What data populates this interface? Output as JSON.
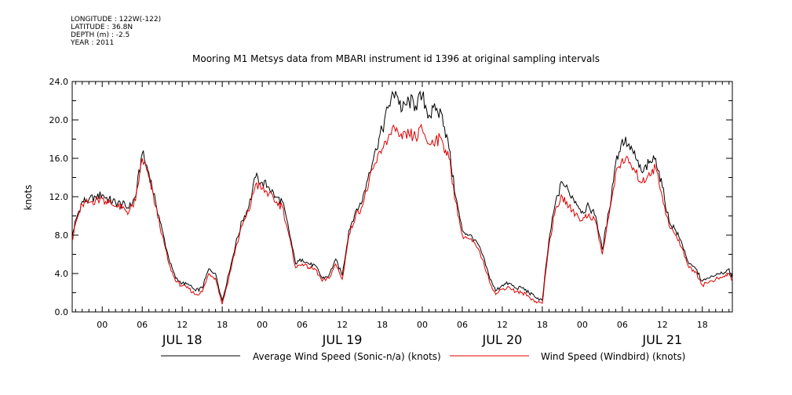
{
  "header": {
    "meta_lines": [
      "LONGITUDE : 122W(-122)",
      "LATITUDE : 36.8N",
      "DEPTH (m) : -2.5",
      "YEAR : 2011"
    ],
    "title": "Mooring M1 Metsys data from MBARI instrument id 1396 at original sampling intervals"
  },
  "chart_data": {
    "type": "line",
    "title": "Mooring M1 Metsys data from MBARI instrument id 1396 at original sampling intervals",
    "xlabel": "",
    "ylabel": "knots",
    "ylim": [
      0,
      24
    ],
    "xlim_hours": [
      -4.5,
      94.5
    ],
    "y_ticks": [
      "0.0",
      "4.0",
      "8.0",
      "12.0",
      "16.0",
      "20.0",
      "24.0"
    ],
    "x_hour_ticks": [
      {
        "h": 0,
        "label": "00"
      },
      {
        "h": 6,
        "label": "06"
      },
      {
        "h": 12,
        "label": "12"
      },
      {
        "h": 18,
        "label": "18"
      },
      {
        "h": 24,
        "label": "00"
      },
      {
        "h": 30,
        "label": "06"
      },
      {
        "h": 36,
        "label": "12"
      },
      {
        "h": 42,
        "label": "18"
      },
      {
        "h": 48,
        "label": "00"
      },
      {
        "h": 54,
        "label": "06"
      },
      {
        "h": 60,
        "label": "12"
      },
      {
        "h": 66,
        "label": "18"
      },
      {
        "h": 72,
        "label": "00"
      },
      {
        "h": 78,
        "label": "06"
      },
      {
        "h": 84,
        "label": "12"
      },
      {
        "h": 90,
        "label": "18"
      }
    ],
    "x_day_labels": [
      {
        "h": 12,
        "label": "JUL 18"
      },
      {
        "h": 36,
        "label": "JUL 19"
      },
      {
        "h": 60,
        "label": "JUL 20"
      },
      {
        "h": 84,
        "label": "JUL 21"
      }
    ],
    "legend_position": "bottom",
    "grid": false,
    "series": [
      {
        "name": "Average Wind Speed (Sonic-n/a) (knots)",
        "color": "#000000",
        "x": [
          -4.5,
          -4,
          -3,
          -2,
          -1,
          0,
          1,
          2,
          3,
          4,
          5,
          6,
          7,
          8,
          9,
          10,
          11,
          12,
          13,
          14,
          15,
          16,
          17,
          18,
          19,
          20,
          21,
          22,
          23,
          24,
          25,
          26,
          27,
          28,
          29,
          30,
          31,
          32,
          33,
          34,
          35,
          36,
          37,
          38,
          39,
          40,
          41,
          42,
          43,
          44,
          45,
          46,
          47,
          48,
          49,
          50,
          51,
          52,
          53,
          54,
          55,
          56,
          57,
          58,
          59,
          60,
          61,
          62,
          63,
          64,
          65,
          66,
          67,
          68,
          69,
          70,
          71,
          72,
          73,
          74,
          75,
          76,
          77,
          78,
          79,
          80,
          81,
          82,
          83,
          84,
          85,
          86,
          87,
          88,
          89,
          90,
          91,
          92,
          93,
          94,
          94.5
        ],
        "y": [
          7.8,
          9.5,
          11.5,
          11.7,
          12.0,
          12.2,
          11.7,
          11.4,
          11.2,
          10.8,
          12.0,
          16.5,
          14.5,
          11.5,
          8.5,
          5.5,
          3.5,
          3.0,
          2.8,
          2.2,
          2.5,
          4.5,
          4.0,
          1.2,
          4.0,
          7.0,
          9.5,
          11.0,
          14.0,
          13.5,
          13.0,
          12.0,
          11.5,
          8.5,
          5.0,
          5.5,
          5.0,
          4.8,
          3.5,
          3.8,
          5.5,
          3.8,
          8.5,
          10.5,
          11.5,
          14.5,
          17.0,
          19.0,
          21.5,
          23.0,
          21.0,
          22.0,
          21.5,
          22.5,
          20.5,
          21.0,
          20.5,
          17.0,
          12.0,
          8.5,
          8.0,
          7.5,
          6.0,
          3.8,
          2.2,
          2.8,
          3.0,
          2.5,
          2.5,
          2.0,
          1.5,
          1.2,
          7.5,
          11.5,
          13.5,
          12.5,
          11.5,
          10.5,
          11.0,
          10.0,
          6.5,
          10.5,
          15.5,
          18.0,
          17.5,
          16.0,
          14.5,
          15.5,
          16.0,
          13.0,
          9.5,
          8.5,
          7.0,
          5.0,
          4.5,
          3.2,
          3.5,
          3.8,
          4.0,
          4.5,
          3.5
        ]
      },
      {
        "name": "Wind Speed (Windbird) (knots)",
        "color": "#e00000",
        "x": [
          -4.5,
          -4,
          -3,
          -2,
          -1,
          0,
          1,
          2,
          3,
          4,
          5,
          6,
          7,
          8,
          9,
          10,
          11,
          12,
          13,
          14,
          15,
          16,
          17,
          18,
          19,
          20,
          21,
          22,
          23,
          24,
          25,
          26,
          27,
          28,
          29,
          30,
          31,
          32,
          33,
          34,
          35,
          36,
          37,
          38,
          39,
          40,
          41,
          42,
          43,
          44,
          45,
          46,
          47,
          48,
          49,
          50,
          51,
          52,
          53,
          54,
          55,
          56,
          57,
          58,
          59,
          60,
          61,
          62,
          63,
          64,
          65,
          66,
          67,
          68,
          69,
          70,
          71,
          72,
          73,
          74,
          75,
          76,
          77,
          78,
          79,
          80,
          81,
          82,
          83,
          84,
          85,
          86,
          87,
          88,
          89,
          90,
          91,
          92,
          93,
          94,
          94.5
        ],
        "y": [
          7.5,
          9.2,
          11.2,
          11.4,
          11.6,
          11.8,
          11.4,
          11.0,
          10.8,
          10.4,
          11.6,
          16.0,
          14.0,
          11.0,
          8.0,
          5.0,
          3.2,
          2.7,
          2.4,
          1.8,
          2.1,
          4.0,
          3.5,
          0.8,
          3.6,
          6.6,
          9.0,
          10.5,
          13.3,
          12.8,
          12.3,
          11.4,
          11.0,
          8.0,
          4.6,
          5.0,
          4.6,
          4.4,
          3.2,
          3.5,
          5.0,
          3.4,
          8.0,
          10.0,
          11.0,
          13.5,
          15.5,
          17.0,
          18.5,
          18.8,
          18.0,
          18.5,
          18.2,
          19.0,
          17.5,
          18.0,
          17.8,
          16.0,
          11.5,
          8.0,
          7.6,
          7.0,
          5.5,
          3.4,
          1.8,
          2.4,
          2.6,
          2.1,
          2.0,
          1.6,
          1.1,
          0.9,
          7.0,
          10.8,
          12.0,
          11.0,
          10.2,
          9.5,
          10.2,
          9.4,
          6.0,
          10.0,
          14.5,
          16.0,
          15.5,
          14.5,
          13.5,
          14.5,
          15.0,
          12.0,
          9.0,
          8.0,
          6.6,
          4.6,
          4.2,
          2.8,
          3.1,
          3.4,
          3.6,
          4.0,
          3.2
        ]
      }
    ]
  }
}
